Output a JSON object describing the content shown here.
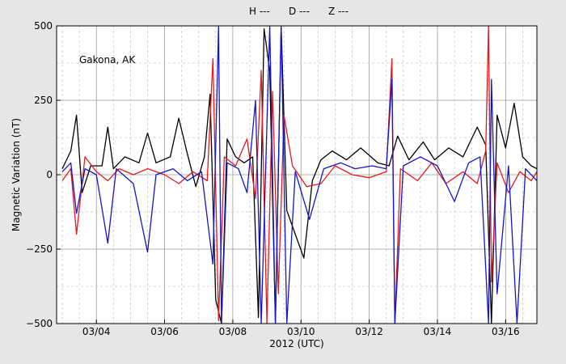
{
  "chart_data": {
    "type": "line",
    "title": "",
    "xlabel": "2012 (UTC)",
    "ylabel": "Magnetic Variation (nT)",
    "annotation": "Gakona, AK",
    "xlim": [
      "03/02 20:00",
      "03/16 22:00"
    ],
    "ylim": [
      -500,
      500
    ],
    "x_tick_labels": [
      "03/04",
      "03/06",
      "03/08",
      "03/10",
      "03/12",
      "03/14",
      "03/16"
    ],
    "y_tick_labels": [
      "500",
      "250",
      "0",
      "−250",
      "−500"
    ],
    "y_ticks": [
      500,
      250,
      0,
      -250,
      -500
    ],
    "grid": true,
    "legend_position": "top",
    "series": [
      {
        "name": "H ---",
        "color": "#000000",
        "points": [
          [
            "03/03 00:00",
            20
          ],
          [
            "03/03 06:00",
            80
          ],
          [
            "03/03 10:00",
            200
          ],
          [
            "03/03 14:00",
            -60
          ],
          [
            "03/03 20:00",
            30
          ],
          [
            "03/04 04:00",
            30
          ],
          [
            "03/04 08:00",
            160
          ],
          [
            "03/04 12:00",
            20
          ],
          [
            "03/04 20:00",
            60
          ],
          [
            "03/05 06:00",
            40
          ],
          [
            "03/05 12:00",
            140
          ],
          [
            "03/05 18:00",
            40
          ],
          [
            "03/06 04:00",
            60
          ],
          [
            "03/06 10:00",
            190
          ],
          [
            "03/06 16:00",
            70
          ],
          [
            "03/06 22:00",
            -40
          ],
          [
            "03/07 04:00",
            60
          ],
          [
            "03/07 08:00",
            270
          ],
          [
            "03/07 12:00",
            -420
          ],
          [
            "03/07 16:00",
            -500
          ],
          [
            "03/07 20:00",
            120
          ],
          [
            "03/08 02:00",
            60
          ],
          [
            "03/08 08:00",
            40
          ],
          [
            "03/08 14:00",
            60
          ],
          [
            "03/08 18:00",
            -480
          ],
          [
            "03/08 22:00",
            490
          ],
          [
            "03/09 02:00",
            350
          ],
          [
            "03/09 06:00",
            -500
          ],
          [
            "03/09 10:00",
            500
          ],
          [
            "03/09 14:00",
            -120
          ],
          [
            "03/09 20:00",
            -200
          ],
          [
            "03/10 02:00",
            -280
          ],
          [
            "03/10 08:00",
            -20
          ],
          [
            "03/10 14:00",
            50
          ],
          [
            "03/10 22:00",
            80
          ],
          [
            "03/11 08:00",
            50
          ],
          [
            "03/11 18:00",
            90
          ],
          [
            "03/12 06:00",
            40
          ],
          [
            "03/12 14:00",
            30
          ],
          [
            "03/12 20:00",
            130
          ],
          [
            "03/13 04:00",
            50
          ],
          [
            "03/13 14:00",
            110
          ],
          [
            "03/13 22:00",
            50
          ],
          [
            "03/14 08:00",
            90
          ],
          [
            "03/14 18:00",
            60
          ],
          [
            "03/15 04:00",
            160
          ],
          [
            "03/15 10:00",
            100
          ],
          [
            "03/15 14:00",
            -500
          ],
          [
            "03/15 18:00",
            200
          ],
          [
            "03/16 00:00",
            90
          ],
          [
            "03/16 06:00",
            240
          ],
          [
            "03/16 12:00",
            60
          ],
          [
            "03/16 18:00",
            30
          ],
          [
            "03/16 22:00",
            20
          ]
        ]
      },
      {
        "name": "D ---",
        "color": "#e31a1c",
        "points": [
          [
            "03/03 00:00",
            -20
          ],
          [
            "03/03 06:00",
            20
          ],
          [
            "03/03 10:00",
            -200
          ],
          [
            "03/03 16:00",
            60
          ],
          [
            "03/04 00:00",
            10
          ],
          [
            "03/04 08:00",
            -20
          ],
          [
            "03/04 16:00",
            20
          ],
          [
            "03/05 02:00",
            0
          ],
          [
            "03/05 12:00",
            20
          ],
          [
            "03/06 00:00",
            0
          ],
          [
            "03/06 10:00",
            -30
          ],
          [
            "03/06 20:00",
            10
          ],
          [
            "03/07 06:00",
            -20
          ],
          [
            "03/07 10:00",
            390
          ],
          [
            "03/07 14:00",
            -490
          ],
          [
            "03/07 18:00",
            60
          ],
          [
            "03/08 02:00",
            30
          ],
          [
            "03/08 10:00",
            120
          ],
          [
            "03/08 16:00",
            -80
          ],
          [
            "03/08 20:00",
            350
          ],
          [
            "03/09 00:00",
            -500
          ],
          [
            "03/09 04:00",
            280
          ],
          [
            "03/09 08:00",
            -400
          ],
          [
            "03/09 12:00",
            200
          ],
          [
            "03/09 18:00",
            30
          ],
          [
            "03/10 04:00",
            -40
          ],
          [
            "03/10 14:00",
            -30
          ],
          [
            "03/11 00:00",
            30
          ],
          [
            "03/11 12:00",
            0
          ],
          [
            "03/12 00:00",
            -10
          ],
          [
            "03/12 12:00",
            10
          ],
          [
            "03/12 16:00",
            390
          ],
          [
            "03/12 18:00",
            -500
          ],
          [
            "03/12 22:00",
            20
          ],
          [
            "03/13 10:00",
            -20
          ],
          [
            "03/13 20:00",
            40
          ],
          [
            "03/14 06:00",
            -30
          ],
          [
            "03/14 18:00",
            10
          ],
          [
            "03/15 04:00",
            -30
          ],
          [
            "03/15 10:00",
            80
          ],
          [
            "03/15 12:00",
            500
          ],
          [
            "03/15 14:00",
            -360
          ],
          [
            "03/15 18:00",
            40
          ],
          [
            "03/16 02:00",
            -60
          ],
          [
            "03/16 10:00",
            10
          ],
          [
            "03/16 18:00",
            -20
          ],
          [
            "03/16 22:00",
            10
          ]
        ]
      },
      {
        "name": "Z ---",
        "color": "#1515c8",
        "points": [
          [
            "03/03 00:00",
            10
          ],
          [
            "03/03 06:00",
            40
          ],
          [
            "03/03 10:00",
            -130
          ],
          [
            "03/03 16:00",
            20
          ],
          [
            "03/04 00:00",
            0
          ],
          [
            "03/04 08:00",
            -230
          ],
          [
            "03/04 14:00",
            20
          ],
          [
            "03/05 02:00",
            -30
          ],
          [
            "03/05 12:00",
            -260
          ],
          [
            "03/05 18:00",
            0
          ],
          [
            "03/06 06:00",
            20
          ],
          [
            "03/06 16:00",
            -20
          ],
          [
            "03/07 02:00",
            10
          ],
          [
            "03/07 10:00",
            -300
          ],
          [
            "03/07 14:00",
            500
          ],
          [
            "03/07 16:00",
            -500
          ],
          [
            "03/07 20:00",
            40
          ],
          [
            "03/08 04:00",
            20
          ],
          [
            "03/08 10:00",
            -60
          ],
          [
            "03/08 16:00",
            250
          ],
          [
            "03/08 20:00",
            -500
          ],
          [
            "03/09 02:00",
            500
          ],
          [
            "03/09 06:00",
            -500
          ],
          [
            "03/09 10:00",
            500
          ],
          [
            "03/09 14:00",
            -500
          ],
          [
            "03/09 20:00",
            10
          ],
          [
            "03/10 06:00",
            -150
          ],
          [
            "03/10 16:00",
            20
          ],
          [
            "03/11 04:00",
            40
          ],
          [
            "03/11 14:00",
            20
          ],
          [
            "03/12 02:00",
            30
          ],
          [
            "03/12 12:00",
            20
          ],
          [
            "03/12 16:00",
            320
          ],
          [
            "03/12 18:00",
            -500
          ],
          [
            "03/13 00:00",
            30
          ],
          [
            "03/13 12:00",
            60
          ],
          [
            "03/14 00:00",
            30
          ],
          [
            "03/14 12:00",
            -90
          ],
          [
            "03/14 22:00",
            40
          ],
          [
            "03/15 06:00",
            60
          ],
          [
            "03/15 12:00",
            -500
          ],
          [
            "03/15 14:00",
            320
          ],
          [
            "03/15 18:00",
            -400
          ],
          [
            "03/16 02:00",
            30
          ],
          [
            "03/16 08:00",
            -500
          ],
          [
            "03/16 14:00",
            20
          ],
          [
            "03/16 22:00",
            -20
          ]
        ]
      }
    ]
  }
}
